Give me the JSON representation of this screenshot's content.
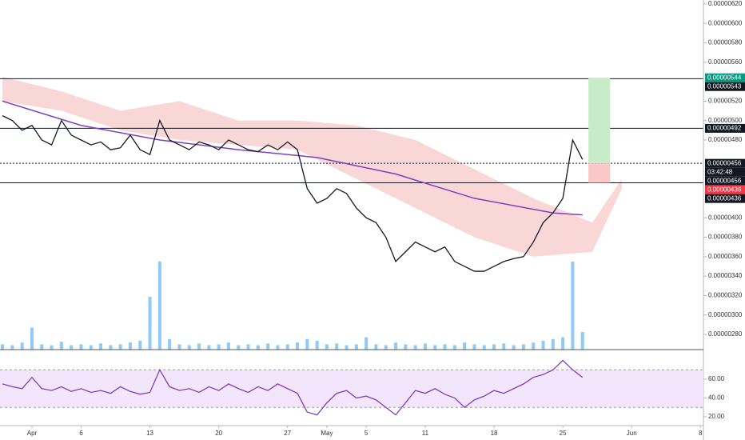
{
  "chart_data": {
    "type": "line",
    "x": [
      -3,
      -2,
      -1,
      0,
      1,
      2,
      3,
      4,
      5,
      6,
      7,
      8,
      9,
      10,
      11,
      12,
      13,
      14,
      15,
      16,
      17,
      18,
      19,
      20,
      21,
      22,
      23,
      24,
      25,
      26,
      27,
      28,
      29,
      30,
      31,
      32,
      33,
      34,
      35,
      36,
      37,
      38,
      39,
      40,
      41,
      42,
      43,
      44,
      45,
      46,
      47,
      48,
      49,
      50,
      51,
      52,
      53,
      54,
      55,
      56
    ],
    "values": [
      5.05e-06,
      5e-06,
      4.9e-06,
      4.95e-06,
      4.8e-06,
      4.75e-06,
      5e-06,
      4.85e-06,
      4.8e-06,
      4.75e-06,
      4.78e-06,
      4.7e-06,
      4.72e-06,
      4.85e-06,
      4.7e-06,
      4.65e-06,
      5e-06,
      4.8e-06,
      4.75e-06,
      4.7e-06,
      4.78e-06,
      4.75e-06,
      4.7e-06,
      4.8e-06,
      4.75e-06,
      4.7e-06,
      4.68e-06,
      4.75e-06,
      4.7e-06,
      4.78e-06,
      4.7e-06,
      4.3e-06,
      4.15e-06,
      4.2e-06,
      4.3e-06,
      4.25e-06,
      4.1e-06,
      4e-06,
      3.95e-06,
      3.8e-06,
      3.55e-06,
      3.65e-06,
      3.75e-06,
      3.7e-06,
      3.65e-06,
      3.7e-06,
      3.55e-06,
      3.5e-06,
      3.45e-06,
      3.45e-06,
      3.5e-06,
      3.55e-06,
      3.58e-06,
      3.6e-06,
      3.75e-06,
      3.95e-06,
      4.05e-06,
      4.2e-06,
      4.8e-06,
      4.6e-06
    ],
    "color": "#131722",
    "volume": [
      6,
      5,
      8,
      25,
      6,
      5,
      9,
      5,
      6,
      5,
      7,
      5,
      6,
      8,
      10,
      60,
      100,
      12,
      6,
      5,
      7,
      5,
      6,
      8,
      5,
      6,
      5,
      7,
      5,
      6,
      8,
      12,
      10,
      6,
      7,
      5,
      6,
      14,
      6,
      5,
      8,
      6,
      5,
      7,
      5,
      6,
      5,
      8,
      6,
      5,
      6,
      7,
      5,
      6,
      8,
      10,
      12,
      14,
      100,
      20
    ],
    "volume_color": "#90caf9",
    "ma": {
      "x": [
        -3,
        5,
        13,
        21,
        29,
        37,
        45,
        53,
        56
      ],
      "values": [
        5.2e-06,
        4.95e-06,
        4.8e-06,
        4.7e-06,
        4.62e-06,
        4.45e-06,
        4.2e-06,
        4.05e-06,
        4.03e-06
      ],
      "color": "#7e3fbf"
    },
    "cloud": {
      "x": [
        -3,
        3,
        9,
        15,
        21,
        27,
        33,
        39,
        45,
        51,
        57,
        60
      ],
      "upper": [
        5.45e-06,
        5.3e-06,
        5.1e-06,
        5.2e-06,
        5e-06,
        5e-06,
        4.95e-06,
        4.8e-06,
        4.5e-06,
        4.2e-06,
        3.95e-06,
        4.4e-06
      ],
      "lower": [
        5.2e-06,
        5.1e-06,
        4.9e-06,
        4.8e-06,
        4.75e-06,
        4.7e-06,
        4.4e-06,
        4.1e-06,
        3.8e-06,
        3.6e-06,
        3.65e-06,
        4.3e-06
      ],
      "color": "#f8c6c6"
    },
    "levels": [
      {
        "value": 5.43e-06,
        "style": "solid"
      },
      {
        "value": 4.92e-06,
        "style": "solid"
      },
      {
        "value": 4.56e-06,
        "style": "dotted"
      },
      {
        "value": 4.36e-06,
        "style": "solid"
      }
    ],
    "position": {
      "x0": 56.6,
      "x1": 58.8,
      "entry": 4.56e-06,
      "target": 5.44e-06,
      "stop": 4.36e-06
    },
    "price_labels": [
      {
        "value": 5.44e-06,
        "label": "0.00000544",
        "color": "#089981"
      },
      {
        "value": 5.43e-06,
        "label": "0.00000543",
        "color": "#131722"
      },
      {
        "value": 4.92e-06,
        "label": "0.00000492",
        "color": "#131722"
      },
      {
        "value": 4.56e-06,
        "label": "0.00000456",
        "color": "#131722"
      },
      {
        "label": "03:42:48",
        "color": "#131722"
      },
      {
        "value": 4.56e-06,
        "label": "0.00000456",
        "color": "#131722"
      },
      {
        "value": 4.36e-06,
        "label": "0.00000436",
        "color": "#f23645"
      },
      {
        "value": 4.36e-06,
        "label": "0.00000436",
        "color": "#131722"
      }
    ],
    "xlim": [
      -3.25,
      68.3
    ],
    "xticks": [
      {
        "value": 0,
        "label": "Apr"
      },
      {
        "value": 5,
        "label": "6"
      },
      {
        "value": 12,
        "label": "13"
      },
      {
        "value": 19,
        "label": "20"
      },
      {
        "value": 26,
        "label": "27"
      },
      {
        "value": 30,
        "label": "May"
      },
      {
        "value": 34,
        "label": "5"
      },
      {
        "value": 40,
        "label": "11"
      },
      {
        "value": 47,
        "label": "18"
      },
      {
        "value": 54,
        "label": "25"
      },
      {
        "value": 61,
        "label": "Jun"
      },
      {
        "value": 68,
        "label": "8"
      }
    ],
    "ylim": [
      2.644e-06,
      6.24e-06
    ],
    "yticks": [
      {
        "value": 6.2e-06,
        "label": "0.00000620"
      },
      {
        "value": 6e-06,
        "label": "0.00000600"
      },
      {
        "value": 5.8e-06,
        "label": "0.00000580"
      },
      {
        "value": 5.6e-06,
        "label": "0.00000560"
      },
      {
        "value": 5.2e-06,
        "label": "0.00000520"
      },
      {
        "value": 5e-06,
        "label": "0.00000500"
      },
      {
        "value": 4.8e-06,
        "label": "0.00000480"
      },
      {
        "value": 4e-06,
        "label": "0.00000400"
      },
      {
        "value": 3.8e-06,
        "label": "0.00000380"
      },
      {
        "value": 3.6e-06,
        "label": "0.00000360"
      },
      {
        "value": 3.4e-06,
        "label": "0.00000340"
      },
      {
        "value": 3.2e-06,
        "label": "0.00000320"
      },
      {
        "value": 3e-06,
        "label": "0.00000300"
      },
      {
        "value": 2.8e-06,
        "label": "0.00000280"
      }
    ],
    "rsi": {
      "values": [
        55,
        52,
        50,
        62,
        50,
        48,
        52,
        47,
        50,
        46,
        48,
        45,
        52,
        47,
        44,
        46,
        70,
        52,
        48,
        50,
        46,
        52,
        48,
        55,
        50,
        46,
        52,
        48,
        55,
        50,
        45,
        25,
        22,
        35,
        45,
        48,
        40,
        42,
        38,
        30,
        22,
        35,
        48,
        45,
        50,
        44,
        40,
        30,
        38,
        42,
        48,
        45,
        50,
        55,
        62,
        65,
        70,
        80,
        70,
        62
      ],
      "color": "#7e3fbf",
      "band": [
        30,
        70
      ],
      "band_color": "#f3e5fb",
      "ylim": [
        10.6,
        89
      ],
      "yticks": [
        {
          "value": 60,
          "label": "60.00"
        },
        {
          "value": 40,
          "label": "40.00"
        },
        {
          "value": 20,
          "label": "20.00"
        }
      ]
    }
  }
}
